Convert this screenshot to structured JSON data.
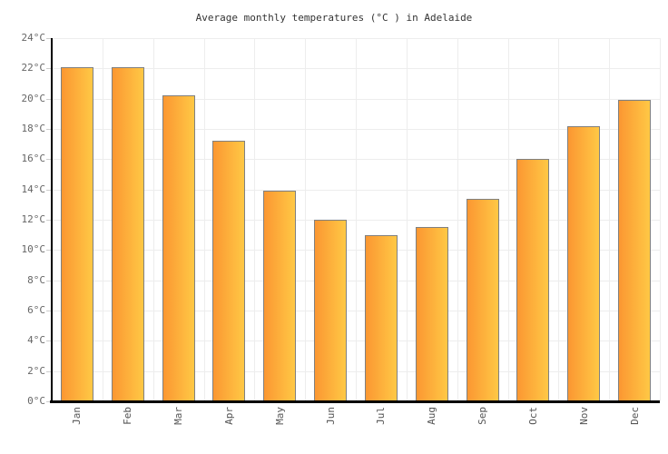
{
  "title": "Average monthly temperatures (°C ) in Adelaide",
  "chart_data": {
    "type": "bar",
    "title": "Average monthly temperatures (°C ) in Adelaide",
    "categories": [
      "Jan",
      "Feb",
      "Mar",
      "Apr",
      "May",
      "Jun",
      "Jul",
      "Aug",
      "Sep",
      "Oct",
      "Nov",
      "Dec"
    ],
    "values": [
      22.1,
      22.1,
      20.2,
      17.2,
      13.9,
      12.0,
      11.0,
      11.5,
      13.4,
      16.0,
      18.2,
      19.9
    ],
    "xlabel": "",
    "ylabel": "",
    "y_unit": "°C",
    "ylim": [
      0,
      24
    ],
    "y_tick_step": 2,
    "grid": true,
    "legend": false
  },
  "style": {
    "bar_gradient_start": "#FB9732",
    "bar_gradient_end": "#FFC845",
    "bar_border": "#808080",
    "grid_color": "#EDEDED",
    "axis_color": "#000000",
    "tick_color": "#CCCCCC",
    "y_label_color": "#666666",
    "x_label_color": "#555555",
    "title_color": "#333333"
  }
}
